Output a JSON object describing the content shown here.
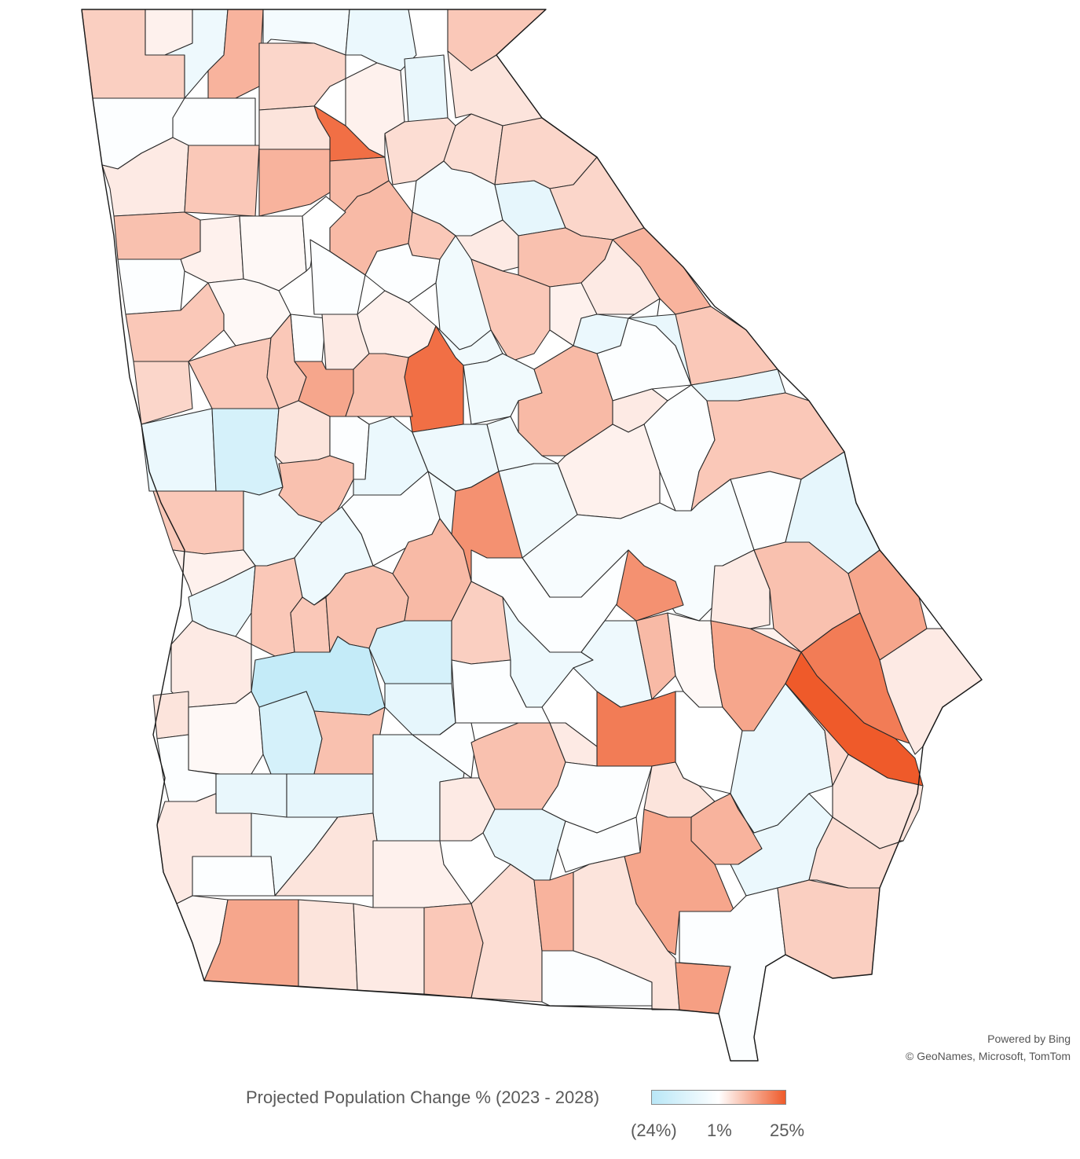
{
  "map": {
    "region": "Georgia counties",
    "colors": {
      "low": "#b9e7f7",
      "mid": "#ffffff",
      "high": "#ef5a2a",
      "outline": "#2b2b2b"
    },
    "shaded_counties_sample": [
      {
        "id": "dark-north",
        "value": 22
      },
      {
        "id": "central-west-orange",
        "value": 21
      },
      {
        "id": "southeast-dark",
        "value": 25
      },
      {
        "id": "south-orange",
        "value": 20
      },
      {
        "id": "west-blue",
        "value": -24
      }
    ]
  },
  "attribution": {
    "line1": "Powered by Bing",
    "line2": "© GeoNames, Microsoft, TomTom"
  },
  "legend": {
    "title": "Projected Population Change % (2023 - 2028)",
    "min_label": "(24%)",
    "mid_label": "1%",
    "max_label": "25%",
    "min_value": -24,
    "mid_value": 1,
    "max_value": 25
  }
}
